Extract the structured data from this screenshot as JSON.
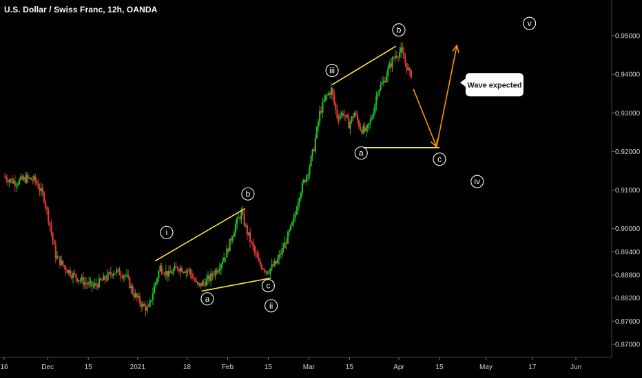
{
  "header": {
    "title": "U.S. Dollar / Swiss Franc, 12h, OANDA"
  },
  "colors": {
    "background": "#000000",
    "up": "#26a69a",
    "up_candle": "#1fbd2a",
    "down_candle": "#e53935",
    "trendline": "#ffeb3b",
    "projection": "#ff9800",
    "axis_text": "#d1d4dc",
    "axis_line": "#434651"
  },
  "chart_data": {
    "type": "candlestick",
    "title": "U.S. Dollar / Swiss Franc, 12h, OANDA",
    "y_ticks": [
      0.95,
      0.94,
      0.93,
      0.92,
      0.91,
      0.9,
      0.894,
      0.888,
      0.882,
      0.876,
      0.87
    ],
    "y_tick_labels": [
      "0.95000",
      "0.94000",
      "0.93000",
      "0.92000",
      "0.91000",
      "0.90000",
      "0.89400",
      "0.88800",
      "0.88200",
      "0.87600",
      "0.87000"
    ],
    "ylim": [
      0.8676,
      0.9551
    ],
    "x_tick_labels": [
      "16",
      "Dec",
      "15",
      "2021",
      "18",
      "Feb",
      "15",
      "Mar",
      "15",
      "Apr",
      "15",
      "May",
      "17",
      "Jun"
    ],
    "x_ticks": [
      "2020-11-16",
      "2020-12-01",
      "2020-12-15",
      "2021-01-01",
      "2021-01-18",
      "2021-02-01",
      "2021-02-15",
      "2021-03-01",
      "2021-03-15",
      "2021-04-01",
      "2021-04-15",
      "2021-05-01",
      "2021-05-17",
      "2021-06-01"
    ],
    "price_path": [
      [
        "2020-11-16",
        0.9135
      ],
      [
        "2020-11-20",
        0.912
      ],
      [
        "2020-11-24",
        0.913
      ],
      [
        "2020-11-27",
        0.9125
      ],
      [
        "2020-11-30",
        0.908
      ],
      [
        "2020-12-02",
        0.901
      ],
      [
        "2020-12-04",
        0.893
      ],
      [
        "2020-12-07",
        0.89
      ],
      [
        "2020-12-10",
        0.888
      ],
      [
        "2020-12-14",
        0.886
      ],
      [
        "2020-12-17",
        0.885
      ],
      [
        "2020-12-21",
        0.887
      ],
      [
        "2020-12-24",
        0.889
      ],
      [
        "2020-12-28",
        0.888
      ],
      [
        "2020-12-31",
        0.883
      ],
      [
        "2021-01-03",
        0.88
      ],
      [
        "2021-01-05",
        0.879
      ],
      [
        "2021-01-07",
        0.885
      ],
      [
        "2021-01-09",
        0.89
      ],
      [
        "2021-01-12",
        0.888
      ],
      [
        "2021-01-15",
        0.89
      ],
      [
        "2021-01-19",
        0.889
      ],
      [
        "2021-01-22",
        0.885
      ],
      [
        "2021-01-26",
        0.887
      ],
      [
        "2021-01-29",
        0.89
      ],
      [
        "2021-02-01",
        0.894
      ],
      [
        "2021-02-04",
        0.901
      ],
      [
        "2021-02-06",
        0.904
      ],
      [
        "2021-02-08",
        0.899
      ],
      [
        "2021-02-10",
        0.895
      ],
      [
        "2021-02-12",
        0.891
      ],
      [
        "2021-02-15",
        0.889
      ],
      [
        "2021-02-18",
        0.891
      ],
      [
        "2021-02-21",
        0.896
      ],
      [
        "2021-02-24",
        0.902
      ],
      [
        "2021-02-26",
        0.909
      ],
      [
        "2021-03-01",
        0.915
      ],
      [
        "2021-03-03",
        0.921
      ],
      [
        "2021-03-05",
        0.93
      ],
      [
        "2021-03-07",
        0.934
      ],
      [
        "2021-03-09",
        0.936
      ],
      [
        "2021-03-11",
        0.929
      ],
      [
        "2021-03-13",
        0.93
      ],
      [
        "2021-03-15",
        0.927
      ],
      [
        "2021-03-17",
        0.93
      ],
      [
        "2021-03-19",
        0.926
      ],
      [
        "2021-03-21",
        0.925
      ],
      [
        "2021-03-23",
        0.929
      ],
      [
        "2021-03-25",
        0.936
      ],
      [
        "2021-03-27",
        0.938
      ],
      [
        "2021-03-29",
        0.942
      ],
      [
        "2021-03-31",
        0.945
      ],
      [
        "2021-04-02",
        0.946
      ],
      [
        "2021-04-04",
        0.942
      ],
      [
        "2021-04-05",
        0.94
      ]
    ],
    "annotations": {
      "wave_labels": [
        {
          "text": "i",
          "date": "2021-01-11",
          "price": 0.899
        },
        {
          "text": "a",
          "date": "2021-01-25",
          "price": 0.8818
        },
        {
          "text": "b",
          "date": "2021-02-08",
          "price": 0.909
        },
        {
          "text": "c",
          "date": "2021-02-15",
          "price": 0.8852
        },
        {
          "text": "ii",
          "date": "2021-02-16",
          "price": 0.88
        },
        {
          "text": "iii",
          "date": "2021-03-09",
          "price": 0.941
        },
        {
          "text": "a",
          "date": "2021-03-19",
          "price": 0.9196
        },
        {
          "text": "b",
          "date": "2021-04-01",
          "price": 0.9515
        },
        {
          "text": "c",
          "date": "2021-04-15",
          "price": 0.918
        },
        {
          "text": "iv",
          "date": "2021-04-28",
          "price": 0.9122
        },
        {
          "text": "v",
          "date": "2021-05-16",
          "price": 0.9532
        }
      ],
      "trendlines": [
        {
          "from": [
            "2021-01-07",
            0.8916
          ],
          "to": [
            "2021-02-07",
            0.9052
          ]
        },
        {
          "from": [
            "2021-01-23",
            0.8838
          ],
          "to": [
            "2021-02-16",
            0.8872
          ]
        },
        {
          "from": [
            "2021-03-09",
            0.9373
          ],
          "to": [
            "2021-03-31",
            0.9473
          ]
        },
        {
          "from": [
            "2021-03-20",
            0.921
          ],
          "to": [
            "2021-04-15",
            0.921
          ]
        }
      ],
      "projection_path": [
        [
          "2021-04-06",
          0.9362
        ],
        [
          "2021-04-14",
          0.9212
        ],
        [
          "2021-04-21",
          0.9475
        ]
      ],
      "callout": {
        "text": "Wave expected",
        "date": "2021-04-24",
        "price": 0.9373
      }
    }
  }
}
